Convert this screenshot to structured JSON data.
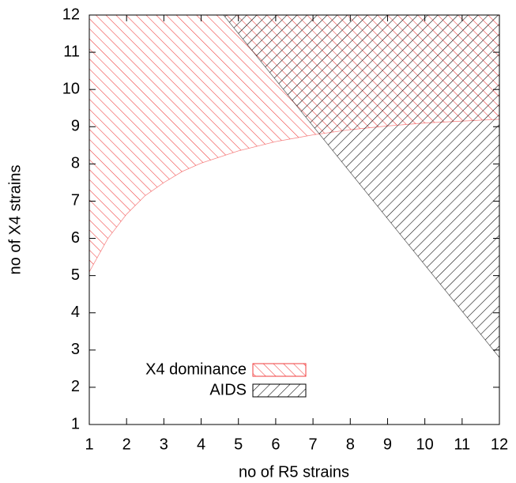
{
  "chart_data": {
    "type": "area",
    "x_label": "no of R5 strains",
    "y_label": "no of X4 strains",
    "xlim": [
      1,
      12
    ],
    "ylim": [
      1,
      12
    ],
    "xticks": [
      1,
      2,
      3,
      4,
      5,
      6,
      7,
      8,
      9,
      10,
      11,
      12
    ],
    "yticks": [
      1,
      2,
      3,
      4,
      5,
      6,
      7,
      8,
      9,
      10,
      11,
      12
    ],
    "legend": "lower left",
    "series": [
      {
        "name": "X4 dominance",
        "color": "#f03c3c",
        "hatch": "backslash",
        "x": [
          1,
          1.5,
          2,
          2.5,
          3,
          3.5,
          4,
          5,
          6,
          7,
          8,
          9,
          10,
          11,
          12
        ],
        "values": [
          5.1,
          6.0,
          6.65,
          7.15,
          7.5,
          7.8,
          8.02,
          8.35,
          8.6,
          8.78,
          8.92,
          9.02,
          9.1,
          9.15,
          9.2
        ]
      },
      {
        "name": "AIDS",
        "color": "#000000",
        "hatch": "slash",
        "x": [
          4.6,
          12
        ],
        "values": [
          12,
          2.8
        ]
      }
    ]
  }
}
